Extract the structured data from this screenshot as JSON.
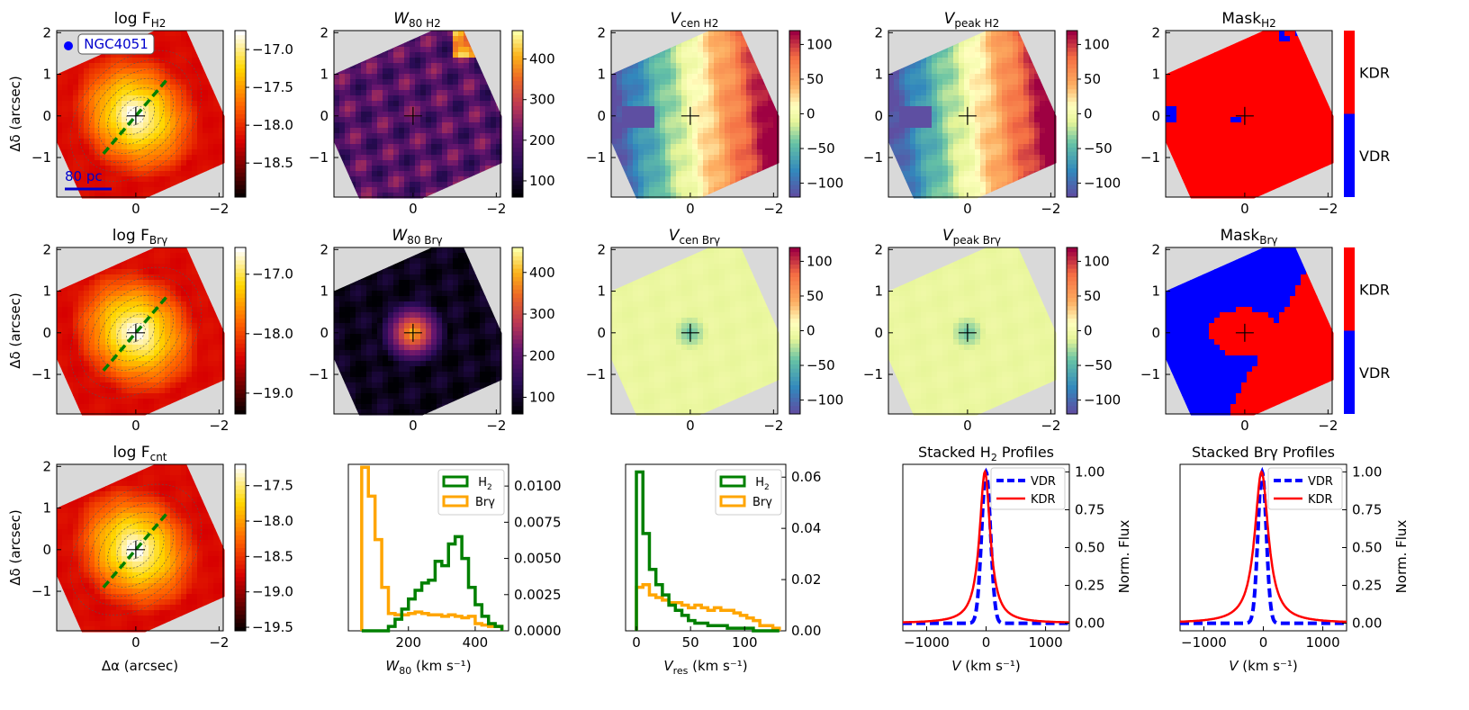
{
  "colors": {
    "gray": "#d9d9d9",
    "kdr": "#ff0000",
    "vdr": "#0000ff",
    "h2_hist": "#008000",
    "brg_hist": "#ffa500",
    "stack_vdr": "#0000ff",
    "stack_kdr": "#ff0000",
    "dash_axis": "#008000",
    "label_blue": "#0000cc"
  },
  "labels": {
    "ylabel_offset": "Δδ (arcsec)",
    "xlabel_offset": "Δα (arcsec)",
    "galaxy": "NGC4051",
    "scale_bar": "80 pc",
    "norm_flux": "Norm. Flux",
    "kdr": "KDR",
    "vdr": "VDR"
  },
  "chart_data": [
    {
      "id": "map-logF-h2",
      "type": "heatmap",
      "title_main": "log F",
      "title_sub": "H2",
      "cmap": "hot",
      "xlim": [
        1.9,
        -2.1
      ],
      "ylim": [
        -1.95,
        2.05
      ],
      "colorbar_ticks": [
        "-17.0",
        "-17.5",
        "-18.0",
        "-18.5"
      ],
      "colorbar_range": [
        -18.95,
        -16.75
      ],
      "map_kind": "flux"
    },
    {
      "id": "map-w80-h2",
      "type": "heatmap",
      "title_main": "W",
      "title_sub": "80 H2",
      "cmap": "inferno",
      "xlim": [
        1.9,
        -2.1
      ],
      "ylim": [
        -1.95,
        2.05
      ],
      "colorbar_ticks": [
        "400",
        "300",
        "200",
        "100"
      ],
      "colorbar_range": [
        60,
        470
      ],
      "map_kind": "w80h2"
    },
    {
      "id": "map-vcen-h2",
      "type": "heatmap",
      "title_main": "V",
      "title_sub": "cen H2",
      "cmap": "Spectral_r",
      "xlim": [
        1.9,
        -2.1
      ],
      "ylim": [
        -1.95,
        2.05
      ],
      "colorbar_ticks": [
        "100",
        "50",
        "0",
        "-50",
        "-100"
      ],
      "colorbar_range": [
        -120,
        120
      ],
      "map_kind": "vh2"
    },
    {
      "id": "map-vpeak-h2",
      "type": "heatmap",
      "title_main": "V",
      "title_sub": "peak H2",
      "cmap": "Spectral_r",
      "xlim": [
        1.9,
        -2.1
      ],
      "ylim": [
        -1.95,
        2.05
      ],
      "colorbar_ticks": [
        "100",
        "50",
        "0",
        "-50",
        "-100"
      ],
      "colorbar_range": [
        -120,
        120
      ],
      "map_kind": "vh2"
    },
    {
      "id": "map-mask-h2",
      "type": "heatmap",
      "title_main": "Mask",
      "title_sub": "H2",
      "cmap": "mask",
      "xlim": [
        1.9,
        -2.1
      ],
      "ylim": [
        -1.95,
        2.05
      ],
      "colorbar_ticks": [],
      "map_kind": "maskh2"
    },
    {
      "id": "map-logF-brg",
      "type": "heatmap",
      "title_main": "log F",
      "title_sub": "Brγ",
      "cmap": "hot",
      "xlim": [
        1.9,
        -2.1
      ],
      "ylim": [
        -1.95,
        2.05
      ],
      "colorbar_ticks": [
        "-17.0",
        "-18.0",
        "-19.0"
      ],
      "colorbar_range": [
        -19.35,
        -16.55
      ],
      "map_kind": "flux"
    },
    {
      "id": "map-w80-brg",
      "type": "heatmap",
      "title_main": "W",
      "title_sub": "80 Brγ",
      "cmap": "inferno",
      "xlim": [
        1.9,
        -2.1
      ],
      "ylim": [
        -1.95,
        2.05
      ],
      "colorbar_ticks": [
        "400",
        "300",
        "200",
        "100"
      ],
      "colorbar_range": [
        60,
        460
      ],
      "map_kind": "w80brg"
    },
    {
      "id": "map-vcen-brg",
      "type": "heatmap",
      "title_main": "V",
      "title_sub": "cen Brγ",
      "cmap": "Spectral_r",
      "xlim": [
        1.9,
        -2.1
      ],
      "ylim": [
        -1.95,
        2.05
      ],
      "colorbar_ticks": [
        "100",
        "50",
        "0",
        "-50",
        "-100"
      ],
      "colorbar_range": [
        -120,
        120
      ],
      "map_kind": "vbrg"
    },
    {
      "id": "map-vpeak-brg",
      "type": "heatmap",
      "title_main": "V",
      "title_sub": "peak Brγ",
      "cmap": "Spectral_r",
      "xlim": [
        1.9,
        -2.1
      ],
      "ylim": [
        -1.95,
        2.05
      ],
      "colorbar_ticks": [
        "100",
        "50",
        "0",
        "-50",
        "-100"
      ],
      "colorbar_range": [
        -120,
        120
      ],
      "map_kind": "vbrg"
    },
    {
      "id": "map-mask-brg",
      "type": "heatmap",
      "title_main": "Mask",
      "title_sub": "Brγ",
      "cmap": "mask",
      "xlim": [
        1.9,
        -2.1
      ],
      "ylim": [
        -1.95,
        2.05
      ],
      "colorbar_ticks": [],
      "map_kind": "maskbrg"
    },
    {
      "id": "map-logF-cnt",
      "type": "heatmap",
      "title_main": "log F",
      "title_sub": "cnt",
      "cmap": "hot",
      "xlim": [
        1.9,
        -2.1
      ],
      "ylim": [
        -1.95,
        2.05
      ],
      "colorbar_ticks": [
        "-17.5",
        "-18.0",
        "-18.5",
        "-19.0",
        "-19.5"
      ],
      "colorbar_range": [
        -19.55,
        -17.2
      ],
      "map_kind": "flux"
    },
    {
      "id": "hist-w80",
      "type": "bar",
      "xlabel_main": "W",
      "xlabel_sub": "80",
      "xlabel_units": " (km s⁻¹)",
      "xlim": [
        20,
        500
      ],
      "ylim": [
        0,
        0.0115
      ],
      "xticks": [
        "200",
        "400"
      ],
      "yticks": [
        "0.0000",
        "0.0025",
        "0.0050",
        "0.0075",
        "0.0100"
      ],
      "series": [
        {
          "name": "H2",
          "label_main": "H",
          "label_sub": "2",
          "edges": [
            60,
            80,
            100,
            120,
            140,
            160,
            180,
            200,
            220,
            240,
            260,
            280,
            300,
            320,
            340,
            360,
            380,
            400,
            420,
            440,
            460,
            480
          ],
          "values": [
            0.0,
            0.0,
            0.0,
            0.0,
            0.0003,
            0.0008,
            0.0015,
            0.0022,
            0.0028,
            0.0033,
            0.0035,
            0.0048,
            0.0045,
            0.006,
            0.0065,
            0.005,
            0.003,
            0.0018,
            0.001,
            0.0005,
            0.0003
          ]
        },
        {
          "name": "Brγ",
          "label_main": "Brγ",
          "label_sub": "",
          "edges": [
            60,
            80,
            100,
            120,
            140,
            160,
            180,
            200,
            220,
            240,
            260,
            280,
            300,
            320,
            340,
            360,
            380,
            400,
            420,
            440,
            460,
            480
          ],
          "values": [
            0.0113,
            0.0093,
            0.0063,
            0.003,
            0.0012,
            0.0011,
            0.0011,
            0.0012,
            0.0013,
            0.0012,
            0.0011,
            0.0011,
            0.001,
            0.0011,
            0.001,
            0.0009,
            0.001,
            0.0005,
            0.0004,
            0.0003,
            0.0003
          ]
        }
      ]
    },
    {
      "id": "hist-vres",
      "type": "bar",
      "xlabel_main": "V",
      "xlabel_sub": "res",
      "xlabel_units": " (km s⁻¹)",
      "xlim": [
        -10,
        138
      ],
      "ylim": [
        0,
        0.065
      ],
      "xticks": [
        "0",
        "50",
        "100"
      ],
      "yticks": [
        "0.00",
        "0.02",
        "0.04",
        "0.06"
      ],
      "series": [
        {
          "name": "H2",
          "label_main": "H",
          "label_sub": "2",
          "edges": [
            0,
            6,
            12,
            18,
            24,
            30,
            36,
            42,
            48,
            54,
            60,
            66,
            72,
            78,
            84,
            90,
            96,
            102,
            108,
            114,
            120,
            126,
            132
          ],
          "values": [
            0.062,
            0.038,
            0.024,
            0.018,
            0.014,
            0.01,
            0.008,
            0.006,
            0.004,
            0.003,
            0.003,
            0.002,
            0.002,
            0.002,
            0.001,
            0.001,
            0.001,
            0.001,
            0.0,
            0.0,
            0.0,
            0.0
          ]
        },
        {
          "name": "Brγ",
          "label_main": "Brγ",
          "label_sub": "",
          "edges": [
            0,
            6,
            12,
            18,
            24,
            30,
            36,
            42,
            48,
            54,
            60,
            66,
            72,
            78,
            84,
            90,
            96,
            102,
            108,
            114,
            120,
            126,
            132
          ],
          "values": [
            0.017,
            0.018,
            0.014,
            0.013,
            0.012,
            0.011,
            0.011,
            0.01,
            0.009,
            0.01,
            0.009,
            0.008,
            0.009,
            0.008,
            0.008,
            0.007,
            0.006,
            0.005,
            0.004,
            0.002,
            0.002,
            0.001
          ]
        }
      ]
    },
    {
      "id": "stack-h2",
      "type": "line",
      "title_main": "Stacked H",
      "title_sub": "2",
      "title_tail": " Profiles",
      "xlabel_main": "V",
      "xlabel_units": " (km s⁻¹)",
      "ylabel": "Norm. Flux",
      "xlim": [
        -1400,
        1400
      ],
      "ylim": [
        -0.05,
        1.05
      ],
      "xticks": [
        "-1000",
        "0",
        "1000"
      ],
      "yticks": [
        "0.00",
        "0.25",
        "0.50",
        "0.75",
        "1.00"
      ],
      "series": [
        {
          "name": "VDR",
          "style": "dashed",
          "center": 0,
          "sigma": 75,
          "shape": "gauss"
        },
        {
          "name": "KDR",
          "style": "solid",
          "center": -20,
          "sigma": 110,
          "shape": "lorentz"
        }
      ]
    },
    {
      "id": "stack-brg",
      "type": "line",
      "title_main": "Stacked Brγ",
      "title_sub": "",
      "title_tail": " Profiles",
      "xlabel_main": "V",
      "xlabel_units": " (km s⁻¹)",
      "ylabel": "Norm. Flux",
      "xlim": [
        -1400,
        1400
      ],
      "ylim": [
        -0.05,
        1.05
      ],
      "xticks": [
        "-1000",
        "0",
        "1000"
      ],
      "yticks": [
        "0.00",
        "0.25",
        "0.50",
        "0.75",
        "1.00"
      ],
      "series": [
        {
          "name": "VDR",
          "style": "dashed",
          "center": -20,
          "sigma": 70,
          "shape": "gauss"
        },
        {
          "name": "KDR",
          "style": "solid",
          "center": -30,
          "sigma": 140,
          "shape": "lorentz"
        }
      ]
    }
  ]
}
